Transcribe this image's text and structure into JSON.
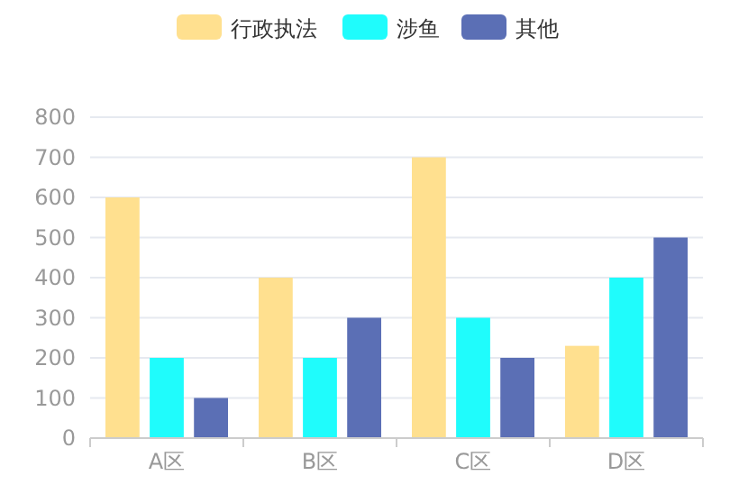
{
  "chart_data": {
    "type": "bar",
    "categories": [
      "A区",
      "B区",
      "C区",
      "D区"
    ],
    "series": [
      {
        "name": "行政执法",
        "color": "#ffe08f",
        "values": [
          600,
          400,
          700,
          230
        ]
      },
      {
        "name": "涉鱼",
        "color": "#1ffcfc",
        "values": [
          200,
          200,
          300,
          400
        ]
      },
      {
        "name": "其他",
        "color": "#5b6fb5",
        "values": [
          100,
          300,
          200,
          500
        ]
      }
    ],
    "ylim": [
      0,
      800
    ],
    "yticks": [
      0,
      100,
      200,
      300,
      400,
      500,
      600,
      700,
      800
    ],
    "grid": "y",
    "legend": "top"
  }
}
